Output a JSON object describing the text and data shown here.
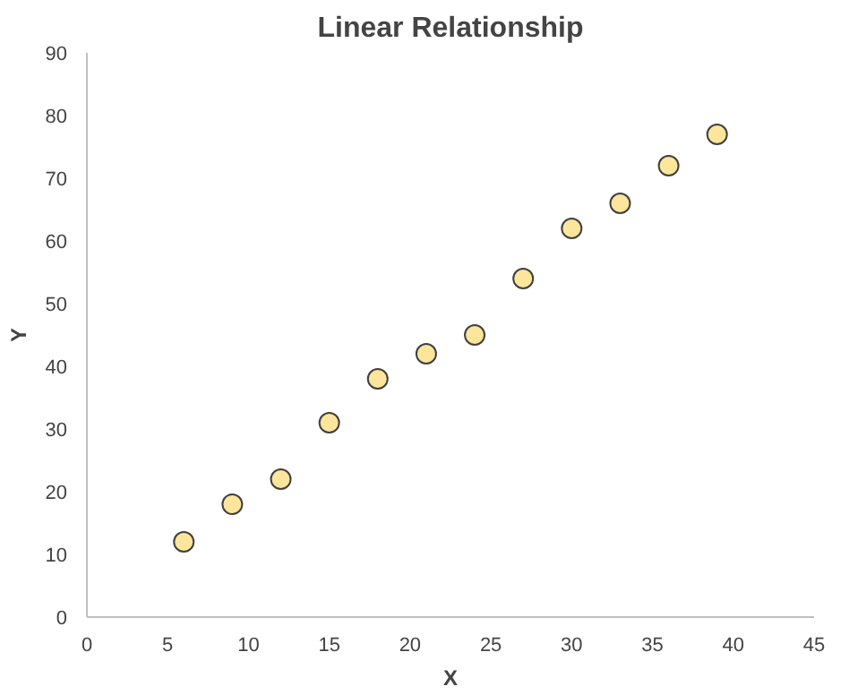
{
  "chart_data": {
    "type": "scatter",
    "title": "Linear Relationship",
    "xlabel": "X",
    "ylabel": "Y",
    "x": [
      6,
      9,
      12,
      15,
      18,
      21,
      24,
      27,
      30,
      33,
      36,
      39
    ],
    "series": [
      {
        "color": "#fde59b",
        "values": [
          12,
          18,
          22,
          31,
          38,
          42,
          45,
          54,
          62,
          66,
          72,
          77
        ]
      }
    ],
    "xlim": [
      0,
      45
    ],
    "xticks": [
      0,
      5,
      10,
      15,
      20,
      25,
      30,
      35,
      40,
      45
    ],
    "ylim": [
      0,
      90
    ],
    "yticks": [
      0,
      10,
      20,
      30,
      40,
      50,
      60,
      70,
      80,
      90
    ],
    "grid": false,
    "marker": "circle"
  }
}
